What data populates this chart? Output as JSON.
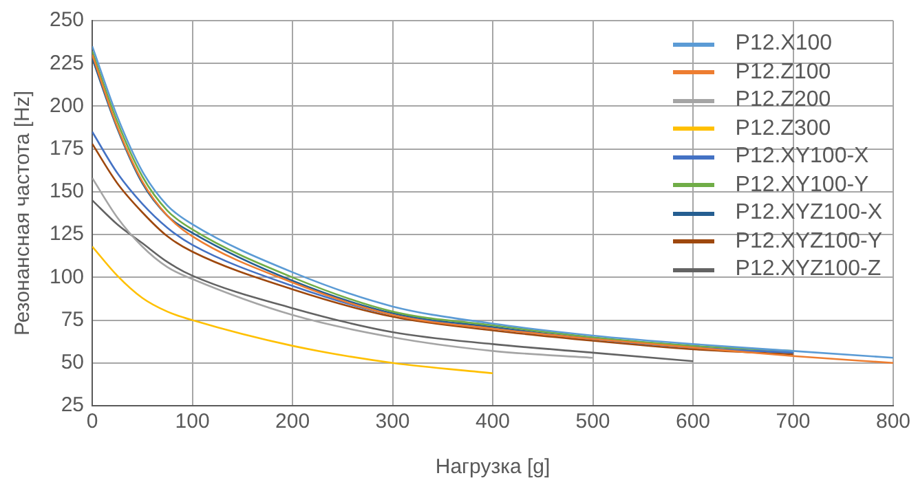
{
  "chart_data": {
    "type": "line",
    "xlabel": "Нагрузка [g]",
    "ylabel": "Резонансная частота [Hz]",
    "xlim": [
      0,
      800
    ],
    "xticks": [
      0,
      100,
      200,
      300,
      400,
      500,
      600,
      700,
      800
    ],
    "ylim": [
      25,
      250
    ],
    "yticks": [
      25,
      50,
      75,
      100,
      125,
      150,
      175,
      200,
      225,
      250
    ],
    "grid": true,
    "legend": "top right",
    "marker": "none",
    "line_style": "solid",
    "series": [
      {
        "name": "P12.X100",
        "color": "#5b9bd5",
        "x": [
          0,
          25,
          50,
          75,
          100,
          200,
          300,
          400,
          500,
          600,
          700,
          800
        ],
        "values": [
          235,
          194,
          162,
          142,
          131,
          103,
          83,
          73,
          66,
          61,
          57,
          53
        ]
      },
      {
        "name": "P12.Z100",
        "color": "#ed7d31",
        "x": [
          0,
          25,
          50,
          75,
          100,
          200,
          300,
          400,
          500,
          600,
          700,
          800
        ],
        "values": [
          230,
          188,
          156,
          136,
          124,
          97,
          78,
          70,
          64,
          59,
          54,
          50
        ]
      },
      {
        "name": "P12.Z200",
        "color": "#a5a5a5",
        "x": [
          0,
          25,
          50,
          75,
          100,
          200,
          300,
          400,
          500
        ],
        "values": [
          158,
          135,
          118,
          106,
          99,
          78,
          65,
          57,
          53
        ]
      },
      {
        "name": "P12.Z300",
        "color": "#ffc000",
        "x": [
          0,
          25,
          50,
          75,
          100,
          200,
          300,
          400
        ],
        "values": [
          118,
          101,
          88,
          80,
          75,
          60,
          50,
          44
        ]
      },
      {
        "name": "P12.XY100-X",
        "color": "#4472c4",
        "x": [
          0,
          25,
          50,
          75,
          100,
          200,
          300,
          400,
          500,
          600,
          700
        ],
        "values": [
          185,
          161,
          143,
          129,
          119,
          95,
          78,
          70,
          64,
          59,
          56
        ]
      },
      {
        "name": "P12.XY100-Y",
        "color": "#70ad47",
        "x": [
          0,
          25,
          50,
          75,
          100,
          200,
          300,
          400,
          500,
          600,
          700
        ],
        "values": [
          232,
          191,
          159,
          139,
          128,
          100,
          80,
          72,
          65,
          60,
          57
        ]
      },
      {
        "name": "P12.XYZ100-X",
        "color": "#255e91",
        "x": [
          0,
          25,
          50,
          75,
          100,
          200,
          300,
          400,
          500,
          600,
          700
        ],
        "values": [
          228,
          187,
          155,
          136,
          126,
          98,
          79,
          71,
          64,
          59,
          56
        ]
      },
      {
        "name": "P12.XYZ100-Y",
        "color": "#9e480e",
        "x": [
          0,
          25,
          50,
          75,
          100,
          200,
          300,
          400,
          500,
          600,
          700
        ],
        "values": [
          178,
          155,
          138,
          124,
          115,
          93,
          77,
          69,
          63,
          58,
          55
        ]
      },
      {
        "name": "P12.XYZ100-Z",
        "color": "#636363",
        "x": [
          0,
          25,
          50,
          75,
          100,
          200,
          300,
          400,
          500,
          600
        ],
        "values": [
          145,
          131,
          120,
          109,
          101,
          82,
          68,
          61,
          56,
          51
        ]
      }
    ]
  }
}
